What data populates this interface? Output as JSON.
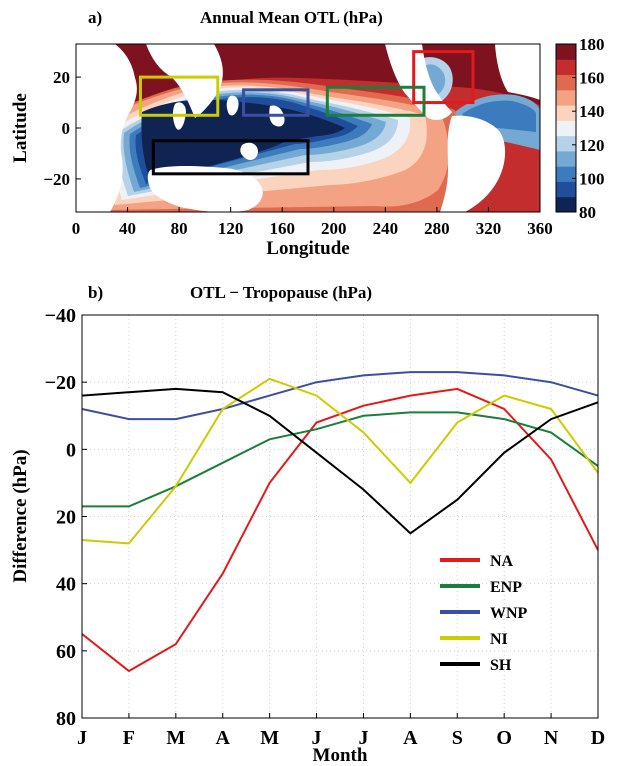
{
  "panel_a": {
    "letter": "a)",
    "title": "Annual Mean OTL (hPa)"
  },
  "panel_b": {
    "letter": "b)",
    "title": "OTL − Tropopause (hPa)"
  },
  "chart_data": [
    {
      "type": "heatmap",
      "title": "Annual Mean OTL (hPa)",
      "xlabel": "Longitude",
      "ylabel": "Latitude",
      "xlim": [
        0,
        360
      ],
      "ylim": [
        -33,
        33
      ],
      "x_ticks": [
        "0",
        "40",
        "80",
        "120",
        "160",
        "200",
        "240",
        "280",
        "320",
        "360"
      ],
      "y_ticks": [
        "20",
        "0",
        "−20"
      ],
      "colorbar": {
        "range": [
          80,
          180
        ],
        "ticks": [
          "180",
          "160",
          "140",
          "120",
          "100",
          "80"
        ],
        "colors": [
          "#0f2453",
          "#1f4e9a",
          "#3c7cbe",
          "#74a9d3",
          "#b5d2e8",
          "#eef2f6",
          "#fbd4c0",
          "#f3a383",
          "#e06a50",
          "#c32d2d",
          "#7e121f"
        ]
      },
      "regions": [
        {
          "name": "NA",
          "color": "#e31a1c",
          "lon": [
            262,
            308
          ],
          "lat": [
            10,
            30
          ]
        },
        {
          "name": "ENP",
          "color": "#1a7f3a",
          "lon": [
            195,
            270
          ],
          "lat": [
            5,
            16
          ]
        },
        {
          "name": "WNP",
          "color": "#3b4ea1",
          "lon": [
            130,
            180
          ],
          "lat": [
            5,
            15
          ]
        },
        {
          "name": "NI",
          "color": "#cccc00",
          "lon": [
            50,
            110
          ],
          "lat": [
            5,
            20
          ]
        },
        {
          "name": "SH",
          "color": "#000000",
          "lon": [
            60,
            180
          ],
          "lat": [
            -18,
            -5
          ]
        }
      ]
    },
    {
      "type": "line",
      "title": "OTL − Tropopause (hPa)",
      "xlabel": "Month",
      "ylabel": "Difference (hPa)",
      "categories": [
        "J",
        "F",
        "M",
        "A",
        "M",
        "J",
        "J",
        "A",
        "S",
        "O",
        "N",
        "D"
      ],
      "ylim": [
        -40,
        80
      ],
      "y_inverted": true,
      "y_ticks": [
        "−40",
        "−20",
        "0",
        "20",
        "40",
        "60",
        "80"
      ],
      "grid": true,
      "legend_position": "lower-right",
      "series": [
        {
          "name": "NA",
          "color": "#e31a1c",
          "values": [
            55,
            66,
            58,
            37,
            10,
            -8,
            -13,
            -16,
            -18,
            -12,
            3,
            30
          ]
        },
        {
          "name": "ENP",
          "color": "#1a7f3a",
          "values": [
            17,
            17,
            11,
            4,
            -3,
            -6,
            -10,
            -11,
            -11,
            -9,
            -5,
            5
          ]
        },
        {
          "name": "WNP",
          "color": "#3b4ea1",
          "values": [
            -12,
            -9,
            -9,
            -12,
            -16,
            -20,
            -22,
            -23,
            -23,
            -22,
            -20,
            -16
          ]
        },
        {
          "name": "NI",
          "color": "#cccc00",
          "values": [
            27,
            28,
            11,
            -12,
            -21,
            -16,
            -5,
            10,
            -8,
            -16,
            -12,
            7
          ]
        },
        {
          "name": "SH",
          "color": "#000000",
          "values": [
            -16,
            -17,
            -18,
            -17,
            -10,
            1,
            12,
            25,
            15,
            1,
            -9,
            -14
          ]
        }
      ]
    }
  ]
}
